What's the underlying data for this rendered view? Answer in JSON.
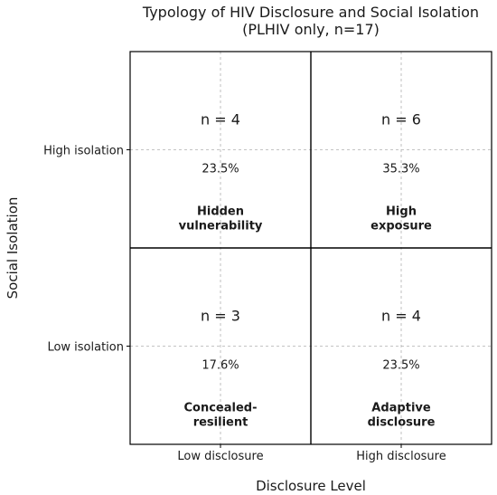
{
  "chart_data": {
    "type": "heatmap",
    "title": "Typology of HIV Disclosure and Social Isolation",
    "subtitle": "(PLHIV only, n=17)",
    "xlabel": "Disclosure Level",
    "ylabel": "Social Isolation",
    "x_categories": [
      "Low disclosure",
      "High disclosure"
    ],
    "y_categories": [
      "Low isolation",
      "High isolation"
    ],
    "grid": true,
    "cells": [
      {
        "x": "Low disclosure",
        "y": "High isolation",
        "count_label": "n = 4",
        "count": 4,
        "percent_label": "23.5%",
        "percent": 23.5,
        "type_label": [
          "Hidden",
          "vulnerability"
        ]
      },
      {
        "x": "High disclosure",
        "y": "High isolation",
        "count_label": "n = 6",
        "count": 6,
        "percent_label": "35.3%",
        "percent": 35.3,
        "type_label": [
          "High",
          "exposure"
        ]
      },
      {
        "x": "Low disclosure",
        "y": "Low isolation",
        "count_label": "n = 3",
        "count": 3,
        "percent_label": "17.6%",
        "percent": 17.6,
        "type_label": [
          "Concealed-",
          "resilient"
        ]
      },
      {
        "x": "High disclosure",
        "y": "Low isolation",
        "count_label": "n = 4",
        "count": 4,
        "percent_label": "23.5%",
        "percent": 23.5,
        "type_label": [
          "Adaptive",
          "disclosure"
        ]
      }
    ]
  }
}
